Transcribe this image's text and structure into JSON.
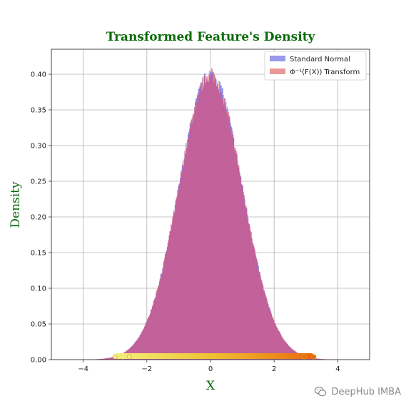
{
  "chart_data": {
    "type": "histogram",
    "title": "Transformed Feature's Density",
    "xlabel": "X",
    "ylabel": "Density",
    "xlim": [
      -5,
      5
    ],
    "ylim": [
      0,
      0.435
    ],
    "x_ticks": [
      -4,
      -2,
      0,
      2,
      4
    ],
    "y_ticks": [
      0.0,
      0.05,
      0.1,
      0.15,
      0.2,
      0.25,
      0.3,
      0.35,
      0.4
    ],
    "x_tick_labels": [
      "−4",
      "−2",
      "0",
      "2",
      "4"
    ],
    "y_tick_labels": [
      "0.00",
      "0.05",
      "0.10",
      "0.15",
      "0.20",
      "0.25",
      "0.30",
      "0.35",
      "0.40"
    ],
    "grid": true,
    "legend_position": "top-right",
    "series": [
      {
        "name": "Standard Normal",
        "color": "#8888e8",
        "distribution": "normal",
        "mean": 0,
        "std": 1,
        "range": [
          -4.2,
          4.3
        ]
      },
      {
        "name": "Φ⁻¹(F(X)) Transform",
        "color": "#e88c8c",
        "distribution": "normal",
        "mean": 0,
        "std": 1,
        "range": [
          -4.0,
          4.0
        ]
      }
    ],
    "overlap_color": "#c2609a",
    "rug": {
      "range": [
        -3.0,
        3.25
      ],
      "color_start": "#f2f07a",
      "color_end": "#e86a0c"
    }
  },
  "watermark": {
    "text": "DeepHub IMBA"
  }
}
